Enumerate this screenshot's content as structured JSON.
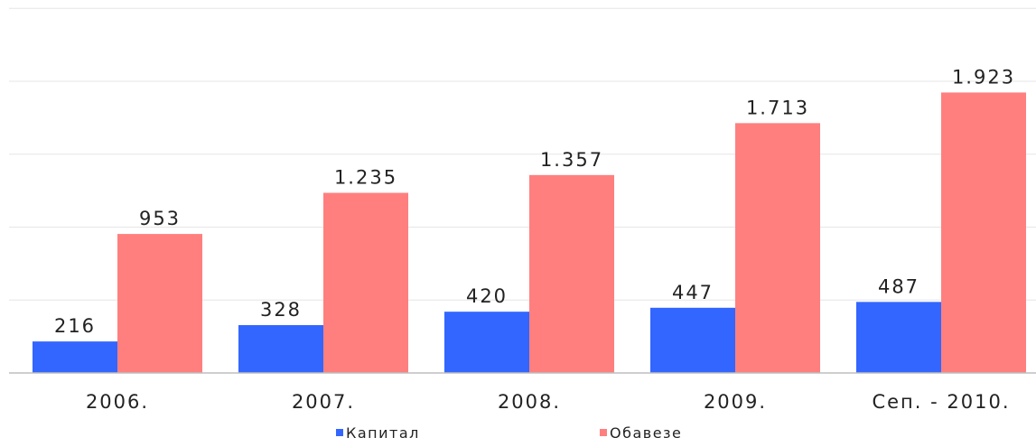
{
  "chart_data": {
    "type": "bar",
    "categories": [
      "2006.",
      "2007.",
      "2008.",
      "2009.",
      "Сеп. - 2010."
    ],
    "series": [
      {
        "name": "Капитал",
        "values": [
          216,
          328,
          420,
          447,
          487
        ],
        "labels": [
          "216",
          "328",
          "420",
          "447",
          "487"
        ],
        "color": "#3366ff"
      },
      {
        "name": "Обавезе",
        "values": [
          953,
          1235,
          1357,
          1713,
          1923
        ],
        "labels": [
          "953",
          "1.235",
          "1.357",
          "1.713",
          "1.923"
        ],
        "color": "#ff7f7f"
      }
    ],
    "ylim": [
      0,
      2500
    ],
    "grid": true,
    "legend_position": "bottom",
    "title": "",
    "xlabel": "",
    "ylabel": ""
  }
}
